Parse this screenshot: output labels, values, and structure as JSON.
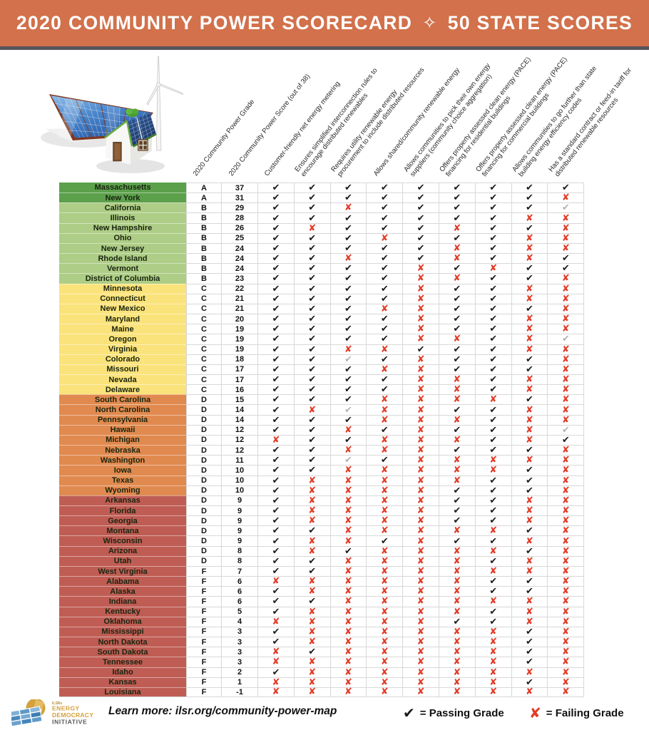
{
  "title": {
    "left": "2020 COMMUNITY POWER SCORECARD",
    "right": "50 STATE SCORES",
    "separator_icon": "sparkle-star",
    "separator_glyph": "✧"
  },
  "colors": {
    "title_bg": "#d2714b",
    "divider": "#56565a",
    "grid_line": "#d8d8d8",
    "check_pass": "#1c1c1c",
    "x_fail": "#e23b27",
    "check_partial": "#b9b2b2",
    "tier_a_green": "#5ca04c",
    "tier_b_green": "#aecd86",
    "tier_c_yellow": "#fbe37b",
    "tier_d_orange": "#e18a4f",
    "tier_f_brick": "#bf5d54",
    "logo_gold": "#d4a13d",
    "logo_gray": "#58585a"
  },
  "legend": {
    "pass_glyph": "✔",
    "pass_label": "= Passing Grade",
    "fail_glyph": "✘",
    "fail_label": "= Failing Grade"
  },
  "footer": {
    "learn_more": "Learn more: ilsr.org/community-power-map",
    "logo": {
      "org": "ILSRs",
      "line1": "ENERGY",
      "line2": "DEMOCRACY",
      "line3": "INITIATIVE"
    }
  },
  "chart_data": {
    "type": "table",
    "title": "2020 Community Power Scorecard ✧ 50 State Scores",
    "mark_legend": {
      "p": "passing grade (black check)",
      "f": "failing grade (red x)",
      "g": "partial (gray check)"
    },
    "columns": [
      "2020 Community Power Grade",
      "2020 Community Power Score (out of 38)",
      "Customer-friendly net energy metering",
      "Ensures simplified interconnection rules to\nencourage distributed renewables",
      "Requires utility renewable energy\nprocurement to include distributed resources",
      "Allows shared/community renewable energy",
      "Allows communities to pick their own energy\nsuppliers (community choice aggregation)",
      "Offers property assessed clean energy (PACE)\nfinancing for residential buildings",
      "Offers property assessed clean energy (PACE)\nfinancing for commercial buildings",
      "Allows communities to go further than state\nbuilding energy efficiency codes",
      "Has a standard contract or feed-in tariff for\ndistributed renewable resources"
    ],
    "rows": [
      {
        "state": "Massachusetts",
        "grade": "A",
        "score": 37,
        "tier": "a",
        "marks": [
          "p",
          "p",
          "p",
          "p",
          "p",
          "p",
          "p",
          "p",
          "p"
        ]
      },
      {
        "state": "New York",
        "grade": "A",
        "score": 31,
        "tier": "a",
        "marks": [
          "p",
          "p",
          "p",
          "p",
          "p",
          "p",
          "p",
          "p",
          "f"
        ]
      },
      {
        "state": "California",
        "grade": "B",
        "score": 29,
        "tier": "b",
        "marks": [
          "p",
          "p",
          "f",
          "p",
          "p",
          "p",
          "p",
          "p",
          "g"
        ]
      },
      {
        "state": "Illinois",
        "grade": "B",
        "score": 28,
        "tier": "b",
        "marks": [
          "p",
          "p",
          "p",
          "p",
          "p",
          "p",
          "p",
          "f",
          "f"
        ]
      },
      {
        "state": "New Hampshire",
        "grade": "B",
        "score": 26,
        "tier": "b",
        "marks": [
          "p",
          "f",
          "p",
          "p",
          "p",
          "f",
          "p",
          "p",
          "f"
        ]
      },
      {
        "state": "Ohio",
        "grade": "B",
        "score": 25,
        "tier": "b",
        "marks": [
          "p",
          "p",
          "p",
          "f",
          "p",
          "p",
          "p",
          "f",
          "f"
        ]
      },
      {
        "state": "New Jersey",
        "grade": "B",
        "score": 24,
        "tier": "b",
        "marks": [
          "p",
          "p",
          "p",
          "p",
          "p",
          "f",
          "p",
          "f",
          "f"
        ]
      },
      {
        "state": "Rhode Island",
        "grade": "B",
        "score": 24,
        "tier": "b",
        "marks": [
          "p",
          "p",
          "f",
          "p",
          "p",
          "f",
          "p",
          "f",
          "p"
        ]
      },
      {
        "state": "Vermont",
        "grade": "B",
        "score": 24,
        "tier": "b",
        "marks": [
          "p",
          "p",
          "p",
          "p",
          "f",
          "p",
          "f",
          "p",
          "p"
        ]
      },
      {
        "state": "District of Columbia",
        "grade": "B",
        "score": 23,
        "tier": "b",
        "marks": [
          "p",
          "p",
          "p",
          "p",
          "f",
          "f",
          "p",
          "p",
          "f"
        ]
      },
      {
        "state": "Minnesota",
        "grade": "C",
        "score": 22,
        "tier": "c",
        "marks": [
          "p",
          "p",
          "p",
          "p",
          "f",
          "p",
          "p",
          "f",
          "f"
        ]
      },
      {
        "state": "Connecticut",
        "grade": "C",
        "score": 21,
        "tier": "c",
        "marks": [
          "p",
          "p",
          "p",
          "p",
          "f",
          "p",
          "p",
          "f",
          "f"
        ]
      },
      {
        "state": "New Mexico",
        "grade": "C",
        "score": 21,
        "tier": "c",
        "marks": [
          "p",
          "p",
          "p",
          "f",
          "f",
          "p",
          "p",
          "p",
          "f"
        ]
      },
      {
        "state": "Maryland",
        "grade": "C",
        "score": 20,
        "tier": "c",
        "marks": [
          "p",
          "p",
          "p",
          "p",
          "f",
          "p",
          "p",
          "f",
          "f"
        ]
      },
      {
        "state": "Maine",
        "grade": "C",
        "score": 19,
        "tier": "c",
        "marks": [
          "p",
          "p",
          "p",
          "p",
          "f",
          "p",
          "p",
          "f",
          "f"
        ]
      },
      {
        "state": "Oregon",
        "grade": "C",
        "score": 19,
        "tier": "c",
        "marks": [
          "p",
          "p",
          "p",
          "p",
          "f",
          "f",
          "p",
          "f",
          "g"
        ]
      },
      {
        "state": "Virginia",
        "grade": "C",
        "score": 19,
        "tier": "c",
        "marks": [
          "p",
          "p",
          "f",
          "f",
          "p",
          "p",
          "p",
          "f",
          "f"
        ]
      },
      {
        "state": "Colorado",
        "grade": "C",
        "score": 18,
        "tier": "c",
        "marks": [
          "p",
          "p",
          "g",
          "p",
          "f",
          "p",
          "p",
          "p",
          "f"
        ]
      },
      {
        "state": "Missouri",
        "grade": "C",
        "score": 17,
        "tier": "c",
        "marks": [
          "p",
          "p",
          "p",
          "f",
          "f",
          "p",
          "p",
          "p",
          "f"
        ]
      },
      {
        "state": "Nevada",
        "grade": "C",
        "score": 17,
        "tier": "c",
        "marks": [
          "p",
          "p",
          "p",
          "p",
          "f",
          "f",
          "p",
          "f",
          "f"
        ]
      },
      {
        "state": "Delaware",
        "grade": "C",
        "score": 16,
        "tier": "c",
        "marks": [
          "p",
          "p",
          "p",
          "p",
          "f",
          "f",
          "p",
          "f",
          "f"
        ]
      },
      {
        "state": "South Carolina",
        "grade": "D",
        "score": 15,
        "tier": "d",
        "marks": [
          "p",
          "p",
          "p",
          "f",
          "f",
          "f",
          "f",
          "p",
          "f"
        ]
      },
      {
        "state": "North Carolina",
        "grade": "D",
        "score": 14,
        "tier": "d",
        "marks": [
          "p",
          "f",
          "g",
          "f",
          "f",
          "p",
          "p",
          "f",
          "f"
        ]
      },
      {
        "state": "Pennsylvania",
        "grade": "D",
        "score": 14,
        "tier": "d",
        "marks": [
          "p",
          "p",
          "p",
          "f",
          "f",
          "f",
          "p",
          "f",
          "f"
        ]
      },
      {
        "state": "Hawaii",
        "grade": "D",
        "score": 12,
        "tier": "d",
        "marks": [
          "p",
          "p",
          "f",
          "p",
          "f",
          "p",
          "p",
          "f",
          "g"
        ]
      },
      {
        "state": "Michigan",
        "grade": "D",
        "score": 12,
        "tier": "d",
        "marks": [
          "f",
          "p",
          "p",
          "f",
          "f",
          "f",
          "p",
          "f",
          "p"
        ]
      },
      {
        "state": "Nebraska",
        "grade": "D",
        "score": 12,
        "tier": "d",
        "marks": [
          "p",
          "p",
          "f",
          "f",
          "f",
          "p",
          "p",
          "p",
          "f"
        ]
      },
      {
        "state": "Washington",
        "grade": "D",
        "score": 11,
        "tier": "d",
        "marks": [
          "p",
          "p",
          "g",
          "p",
          "f",
          "f",
          "f",
          "f",
          "f"
        ]
      },
      {
        "state": "Iowa",
        "grade": "D",
        "score": 10,
        "tier": "d",
        "marks": [
          "p",
          "p",
          "f",
          "f",
          "f",
          "f",
          "f",
          "p",
          "f"
        ]
      },
      {
        "state": "Texas",
        "grade": "D",
        "score": 10,
        "tier": "d",
        "marks": [
          "p",
          "f",
          "f",
          "f",
          "f",
          "f",
          "p",
          "p",
          "f"
        ]
      },
      {
        "state": "Wyoming",
        "grade": "D",
        "score": 10,
        "tier": "d",
        "marks": [
          "p",
          "f",
          "f",
          "f",
          "f",
          "p",
          "p",
          "p",
          "f"
        ]
      },
      {
        "state": "Arkansas",
        "grade": "D",
        "score": 9,
        "tier": "f",
        "marks": [
          "p",
          "f",
          "f",
          "f",
          "f",
          "p",
          "p",
          "f",
          "f"
        ]
      },
      {
        "state": "Florida",
        "grade": "D",
        "score": 9,
        "tier": "f",
        "marks": [
          "p",
          "f",
          "f",
          "f",
          "f",
          "p",
          "p",
          "f",
          "f"
        ]
      },
      {
        "state": "Georgia",
        "grade": "D",
        "score": 9,
        "tier": "f",
        "marks": [
          "p",
          "f",
          "f",
          "f",
          "f",
          "p",
          "p",
          "f",
          "f"
        ]
      },
      {
        "state": "Montana",
        "grade": "D",
        "score": 9,
        "tier": "f",
        "marks": [
          "p",
          "p",
          "f",
          "f",
          "f",
          "f",
          "f",
          "p",
          "f"
        ]
      },
      {
        "state": "Wisconsin",
        "grade": "D",
        "score": 9,
        "tier": "f",
        "marks": [
          "p",
          "f",
          "f",
          "p",
          "f",
          "p",
          "p",
          "f",
          "f"
        ]
      },
      {
        "state": "Arizona",
        "grade": "D",
        "score": 8,
        "tier": "f",
        "marks": [
          "p",
          "f",
          "p",
          "f",
          "f",
          "f",
          "f",
          "p",
          "f"
        ]
      },
      {
        "state": "Utah",
        "grade": "D",
        "score": 8,
        "tier": "f",
        "marks": [
          "p",
          "p",
          "f",
          "f",
          "f",
          "f",
          "p",
          "f",
          "f"
        ]
      },
      {
        "state": "West Virginia",
        "grade": "F",
        "score": 7,
        "tier": "f",
        "marks": [
          "p",
          "p",
          "f",
          "f",
          "f",
          "f",
          "f",
          "f",
          "f"
        ]
      },
      {
        "state": "Alabama",
        "grade": "F",
        "score": 6,
        "tier": "f",
        "marks": [
          "f",
          "f",
          "f",
          "f",
          "f",
          "f",
          "p",
          "p",
          "f"
        ]
      },
      {
        "state": "Alaska",
        "grade": "F",
        "score": 6,
        "tier": "f",
        "marks": [
          "p",
          "f",
          "f",
          "f",
          "f",
          "f",
          "p",
          "p",
          "f"
        ]
      },
      {
        "state": "Indiana",
        "grade": "F",
        "score": 6,
        "tier": "f",
        "marks": [
          "p",
          "p",
          "f",
          "f",
          "f",
          "f",
          "f",
          "f",
          "f"
        ]
      },
      {
        "state": "Kentucky",
        "grade": "F",
        "score": 5,
        "tier": "f",
        "marks": [
          "p",
          "f",
          "f",
          "f",
          "f",
          "f",
          "p",
          "f",
          "f"
        ]
      },
      {
        "state": "Oklahoma",
        "grade": "F",
        "score": 4,
        "tier": "f",
        "marks": [
          "f",
          "f",
          "f",
          "f",
          "f",
          "p",
          "p",
          "f",
          "f"
        ]
      },
      {
        "state": "Mississippi",
        "grade": "F",
        "score": 3,
        "tier": "f",
        "marks": [
          "p",
          "f",
          "f",
          "f",
          "f",
          "f",
          "f",
          "p",
          "f"
        ]
      },
      {
        "state": "North Dakota",
        "grade": "F",
        "score": 3,
        "tier": "f",
        "marks": [
          "p",
          "f",
          "f",
          "f",
          "f",
          "f",
          "f",
          "p",
          "f"
        ]
      },
      {
        "state": "South Dakota",
        "grade": "F",
        "score": 3,
        "tier": "f",
        "marks": [
          "f",
          "p",
          "f",
          "f",
          "f",
          "f",
          "f",
          "p",
          "f"
        ]
      },
      {
        "state": "Tennessee",
        "grade": "F",
        "score": 3,
        "tier": "f",
        "marks": [
          "f",
          "f",
          "f",
          "f",
          "f",
          "f",
          "f",
          "p",
          "f"
        ]
      },
      {
        "state": "Idaho",
        "grade": "F",
        "score": 2,
        "tier": "f",
        "marks": [
          "p",
          "f",
          "f",
          "f",
          "f",
          "f",
          "f",
          "f",
          "f"
        ]
      },
      {
        "state": "Kansas",
        "grade": "F",
        "score": 1,
        "tier": "f",
        "marks": [
          "f",
          "f",
          "f",
          "f",
          "f",
          "f",
          "f",
          "p",
          "f"
        ]
      },
      {
        "state": "Louisiana",
        "grade": "F",
        "score": -1,
        "tier": "f",
        "marks": [
          "f",
          "f",
          "f",
          "f",
          "f",
          "f",
          "f",
          "f",
          "f"
        ]
      }
    ]
  }
}
